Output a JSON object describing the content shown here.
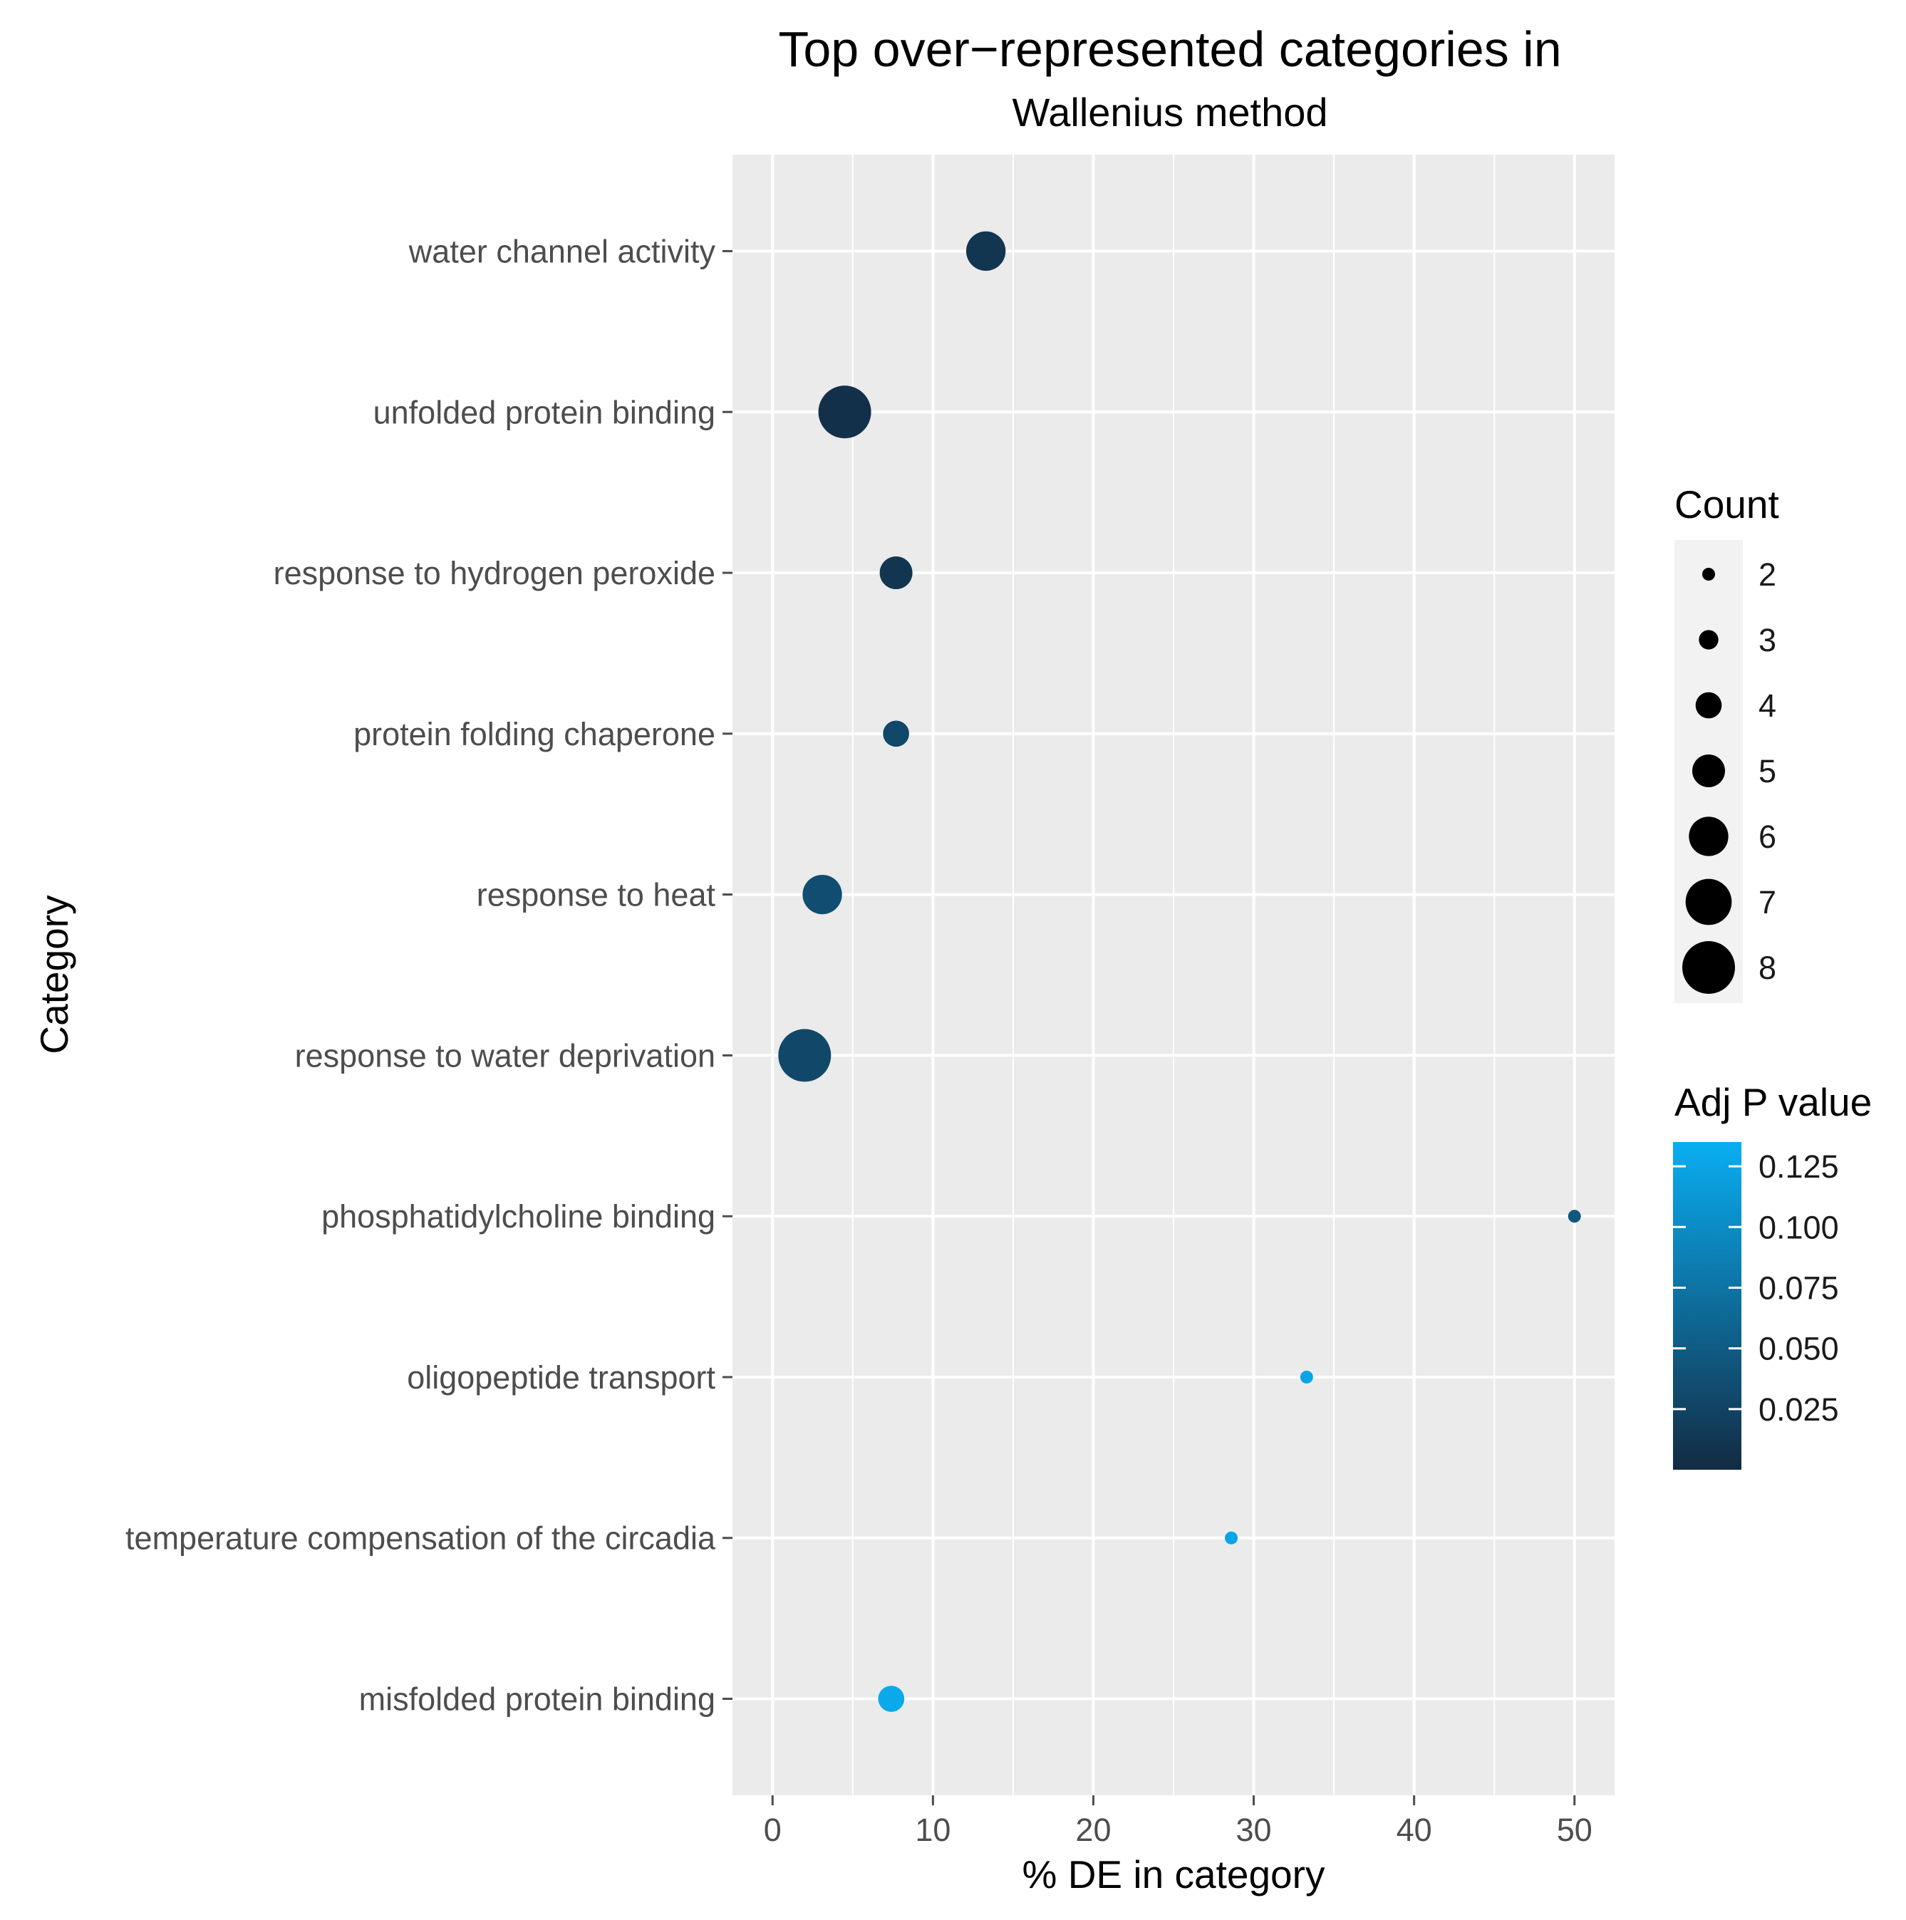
{
  "chart_data": {
    "type": "scatter",
    "title": "Top over−represented categories in",
    "subtitle": "Wallenius  method",
    "xlabel": "% DE in category",
    "ylabel": "Category",
    "xlim": [
      -2.5,
      52.5
    ],
    "xticks": [
      0,
      10,
      20,
      30,
      40,
      50
    ],
    "grid": true,
    "categories": [
      "water channel activity",
      "unfolded protein binding",
      "response to hydrogen peroxide",
      "protein folding chaperone",
      "response to heat",
      "response to water deprivation",
      "phosphatidylcholine binding",
      "oligopeptide transport",
      "temperature compensation of the circadia",
      "misfolded protein binding"
    ],
    "points": [
      {
        "category": "water channel activity",
        "x": 13.3,
        "count": 6,
        "padj": 0.01
      },
      {
        "category": "unfolded protein binding",
        "x": 4.5,
        "count": 8,
        "padj": 0.005
      },
      {
        "category": "response to hydrogen peroxide",
        "x": 7.7,
        "count": 5,
        "padj": 0.01
      },
      {
        "category": "protein folding chaperone",
        "x": 7.7,
        "count": 4,
        "padj": 0.03
      },
      {
        "category": "response to heat",
        "x": 3.1,
        "count": 6,
        "padj": 0.035
      },
      {
        "category": "response to water deprivation",
        "x": 2.0,
        "count": 8,
        "padj": 0.03
      },
      {
        "category": "phosphatidylcholine binding",
        "x": 50.0,
        "count": 2,
        "padj": 0.045
      },
      {
        "category": "oligopeptide transport",
        "x": 33.3,
        "count": 2,
        "padj": 0.125
      },
      {
        "category": "temperature compensation of the circadia",
        "x": 28.6,
        "count": 2,
        "padj": 0.125
      },
      {
        "category": "misfolded protein binding",
        "x": 7.4,
        "count": 4,
        "padj": 0.13
      }
    ],
    "size_legend": {
      "title": "Count",
      "breaks": [
        2,
        3,
        4,
        5,
        6,
        7,
        8
      ]
    },
    "color_legend": {
      "title": "Adj P value",
      "breaks": [
        0.125,
        0.1,
        0.075,
        0.05,
        0.025
      ],
      "break_labels": [
        "0.125",
        "0.100",
        "0.075",
        "0.050",
        "0.025"
      ],
      "range": [
        0.0,
        0.135
      ],
      "low_color": "#132b43",
      "high_color": "#09aef3"
    },
    "legend_position": "right"
  },
  "colors": {
    "panel_background": "#ebebeb",
    "grid_line": "#ffffff",
    "tick_color": "#4d4d4d",
    "size_key_background": "#f2f2f2"
  }
}
